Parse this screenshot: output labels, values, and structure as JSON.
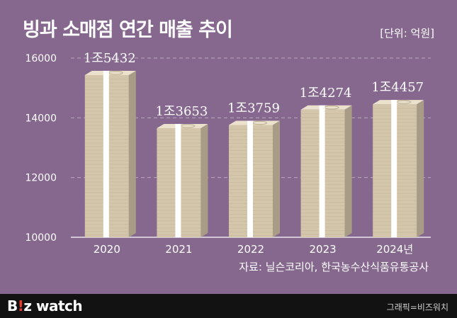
{
  "title": "빙과 소매점 연간 매출 추이",
  "unit_note": "[단위: 억원]",
  "source": "자료: 닐슨코리아, 한국농수산식품유통공사",
  "footer": {
    "logo_b": "B",
    "logo_mark": "!",
    "logo_rest": "z watch",
    "credit": "그래픽=비즈워치"
  },
  "colors": {
    "background": "#86688f",
    "gridline": "#b9a9be",
    "bundle_front": "#d4c6ab",
    "bundle_side": "#a89c87",
    "bundle_top": "#ebe1cd",
    "band": "#ffffff"
  },
  "chart_data": {
    "type": "bar",
    "categories": [
      "2020",
      "2021",
      "2022",
      "2023",
      "2024년"
    ],
    "values": [
      15432,
      13653,
      13759,
      14274,
      14457
    ],
    "value_labels": [
      "1조5432",
      "1조3653",
      "1조3759",
      "1조4274",
      "1조4457"
    ],
    "ylim": [
      10000,
      16000
    ],
    "yticks": [
      10000,
      12000,
      14000,
      16000
    ],
    "grid": true,
    "title": "빙과 소매점 연간 매출 추이",
    "ylabel": "",
    "xlabel": ""
  }
}
